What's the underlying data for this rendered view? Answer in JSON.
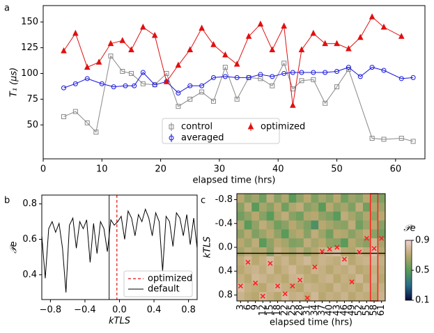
{
  "chart_data": [
    {
      "type": "line",
      "label": "a",
      "xlabel": "elapsed time (hrs)",
      "ylabel": "T₁ (μs)",
      "xlim": [
        0,
        65
      ],
      "ylim": [
        17,
        166
      ],
      "xticks": [
        0,
        10,
        20,
        30,
        40,
        50,
        60
      ],
      "yticks": [
        50,
        75,
        100,
        125,
        150
      ],
      "series": [
        {
          "name": "control",
          "color": "#888888",
          "marker": "s",
          "x": [
            3.5,
            5.5,
            7.5,
            9,
            11.5,
            13.5,
            15,
            17,
            19,
            21,
            23,
            25,
            27,
            29,
            31,
            33,
            35,
            37,
            39,
            41,
            42.5,
            44,
            46,
            48,
            50,
            52,
            56,
            58,
            61,
            63
          ],
          "values": [
            58,
            63,
            52,
            43,
            117,
            102,
            100,
            90,
            89,
            100,
            68,
            75,
            82,
            73,
            106,
            75,
            96,
            95,
            88,
            110,
            85,
            93,
            94,
            71,
            87,
            104,
            37,
            36,
            37,
            34
          ]
        },
        {
          "name": "averaged",
          "color": "#1515e0",
          "marker": "o",
          "x": [
            3.5,
            5.5,
            7.5,
            10,
            12,
            14,
            15.5,
            17,
            19,
            21,
            23,
            25,
            27,
            29,
            31,
            33,
            35,
            37,
            39,
            41,
            42.5,
            44,
            46,
            48,
            50,
            52,
            54,
            56,
            58,
            61,
            63
          ],
          "values": [
            86,
            90,
            95,
            90,
            87,
            88,
            88,
            101,
            89,
            92,
            81,
            88,
            88,
            96,
            97,
            96,
            96,
            99,
            97,
            100,
            101,
            101,
            101,
            101,
            102,
            106,
            97,
            106,
            103,
            95,
            96
          ]
        },
        {
          "name": "optimized",
          "color": "#e01010",
          "marker": "^",
          "x": [
            3.5,
            5.5,
            7.5,
            9.5,
            11.5,
            13.5,
            15,
            17,
            19,
            21,
            23,
            25,
            27,
            29,
            31,
            33,
            35,
            37,
            39,
            41,
            42.5,
            44,
            46,
            48,
            50,
            52,
            54,
            56,
            58,
            61
          ],
          "values": [
            122,
            139,
            106,
            111,
            129,
            132,
            123,
            145,
            137,
            92,
            108,
            123,
            144,
            128,
            118,
            109,
            136,
            148,
            123,
            146,
            69,
            123,
            139,
            129,
            129,
            124,
            135,
            155,
            145,
            136
          ]
        }
      ]
    },
    {
      "type": "line",
      "label": "b",
      "xlabel": "kTLS",
      "ylabel": "𝒫e",
      "xlim": [
        -0.9,
        0.9
      ],
      "ylim": [
        0.26,
        0.85
      ],
      "xticks": [
        {
          "value": -0.8,
          "label": "−0.8"
        },
        {
          "value": -0.4,
          "label": "−0.4"
        },
        {
          "value": 0,
          "label": "0.0"
        },
        0.4,
        0.8
      ],
      "yticks": [
        0.4,
        0.6,
        0.8
      ],
      "series": [
        {
          "color": "#000000",
          "x": [
            -0.9,
            -0.86,
            -0.82,
            -0.78,
            -0.74,
            -0.7,
            -0.66,
            -0.62,
            -0.58,
            -0.54,
            -0.5,
            -0.46,
            -0.42,
            -0.38,
            -0.34,
            -0.3,
            -0.26,
            -0.22,
            -0.18,
            -0.14,
            -0.1,
            -0.06,
            -0.02,
            0.02,
            0.06,
            0.1,
            0.14,
            0.18,
            0.22,
            0.26,
            0.3,
            0.34,
            0.38,
            0.42,
            0.46,
            0.5,
            0.54,
            0.58,
            0.62,
            0.66,
            0.7,
            0.74,
            0.78,
            0.82,
            0.86,
            0.9
          ],
          "values": [
            0.62,
            0.38,
            0.66,
            0.7,
            0.64,
            0.69,
            0.55,
            0.3,
            0.68,
            0.72,
            0.55,
            0.7,
            0.66,
            0.71,
            0.47,
            0.69,
            0.52,
            0.7,
            0.66,
            0.53,
            0.71,
            0.68,
            0.7,
            0.73,
            0.6,
            0.76,
            0.72,
            0.62,
            0.74,
            0.7,
            0.77,
            0.72,
            0.62,
            0.75,
            0.7,
            0.42,
            0.73,
            0.7,
            0.56,
            0.75,
            0.72,
            0.62,
            0.74,
            0.57,
            0.72,
            0.55
          ]
        }
      ],
      "vlines": [
        {
          "name": "optimized",
          "x": -0.03,
          "color": "#e01010",
          "dash": true
        },
        {
          "name": "default",
          "x": -0.12,
          "color": "#333333"
        }
      ]
    },
    {
      "type": "heatmap",
      "label": "c",
      "xlabel": "elapsed time (hrs)",
      "ylabel": "kTLS",
      "colorbar_label": "𝒫e",
      "categories": [
        "3",
        "6",
        "9",
        "12",
        "15",
        "18",
        "22",
        "25",
        "28",
        "31",
        "34",
        "37",
        "40",
        "43",
        "46",
        "49",
        "52",
        "55",
        "58",
        "61"
      ],
      "ylim": [
        -0.9,
        0.9
      ],
      "y_inverted": true,
      "yticks": [
        {
          "value": -0.8,
          "label": "-0.8"
        },
        {
          "value": -0.4,
          "label": "-0.4"
        },
        {
          "value": 0,
          "label": "0.0"
        },
        0.4,
        0.8
      ],
      "clim": [
        0.1,
        0.9
      ],
      "cticks": [
        0.1,
        0.5,
        0.9
      ],
      "colormap": [
        "#0a0a3c",
        "#2a6e8a",
        "#5a9a5a",
        "#b8a870",
        "#f2d0d0"
      ],
      "hline": 0.1,
      "highlight_column": "58",
      "marker_color": "#ff2020",
      "markers": [
        0.65,
        0.25,
        0.6,
        0.82,
        0.27,
        0.65,
        0.78,
        0.65,
        0.55,
        0.85,
        0.33,
        0.07,
        0.03,
        0.0,
        0.2,
        0.58,
        0.08,
        -0.15,
        0.02,
        -0.15
      ],
      "values": [
        [
          0.7,
          0.6,
          0.65,
          0.55,
          0.72,
          0.6,
          0.68,
          0.5,
          0.62,
          0.7,
          0.58,
          0.66,
          0.6,
          0.7,
          0.55,
          0.64,
          0.6,
          0.7,
          0.62,
          0.58
        ],
        [
          0.6,
          0.72,
          0.5,
          0.66,
          0.6,
          0.7,
          0.55,
          0.68,
          0.72,
          0.6,
          0.64,
          0.5,
          0.7,
          0.62,
          0.66,
          0.58,
          0.72,
          0.55,
          0.68,
          0.64
        ],
        [
          0.55,
          0.62,
          0.7,
          0.6,
          0.5,
          0.66,
          0.72,
          0.6,
          0.55,
          0.68,
          0.7,
          0.62,
          0.58,
          0.5,
          0.72,
          0.66,
          0.6,
          0.68,
          0.62,
          0.7
        ],
        [
          0.68,
          0.5,
          0.62,
          0.72,
          0.66,
          0.55,
          0.6,
          0.7,
          0.64,
          0.58,
          0.45,
          0.7,
          0.66,
          0.62,
          0.6,
          0.72,
          0.55,
          0.64,
          0.7,
          0.6
        ],
        [
          0.62,
          0.7,
          0.58,
          0.64,
          0.7,
          0.62,
          0.5,
          0.66,
          0.7,
          0.6,
          0.72,
          0.64,
          0.55,
          0.7,
          0.68,
          0.6,
          0.66,
          0.72,
          0.6,
          0.55
        ],
        [
          0.7,
          0.64,
          0.72,
          0.5,
          0.62,
          0.7,
          0.66,
          0.58,
          0.6,
          0.72,
          0.66,
          0.7,
          0.62,
          0.6,
          0.5,
          0.7,
          0.64,
          0.6,
          0.78,
          0.66
        ],
        [
          0.66,
          0.72,
          0.68,
          0.7,
          0.6,
          0.74,
          0.7,
          0.66,
          0.72,
          0.64,
          0.7,
          0.76,
          0.78,
          0.8,
          0.7,
          0.68,
          0.76,
          0.72,
          0.82,
          0.7
        ],
        [
          0.72,
          0.78,
          0.7,
          0.74,
          0.8,
          0.72,
          0.76,
          0.7,
          0.74,
          0.78,
          0.72,
          0.76,
          0.74,
          0.72,
          0.8,
          0.7,
          0.74,
          0.76,
          0.78,
          0.74
        ],
        [
          0.7,
          0.74,
          0.76,
          0.72,
          0.78,
          0.7,
          0.74,
          0.78,
          0.72,
          0.7,
          0.76,
          0.74,
          0.7,
          0.74,
          0.72,
          0.76,
          0.7,
          0.72,
          0.74,
          0.72
        ],
        [
          0.74,
          0.7,
          0.78,
          0.76,
          0.72,
          0.74,
          0.7,
          0.76,
          0.78,
          0.72,
          0.7,
          0.74,
          0.76,
          0.7,
          0.74,
          0.72,
          0.78,
          0.7,
          0.76,
          0.7
        ],
        [
          0.8,
          0.74,
          0.72,
          0.7,
          0.76,
          0.78,
          0.74,
          0.72,
          0.7,
          0.76,
          0.74,
          0.72,
          0.7,
          0.76,
          0.72,
          0.74,
          0.7,
          0.76,
          0.72,
          0.74
        ],
        [
          0.76,
          0.72,
          0.7,
          0.78,
          0.74,
          0.7,
          0.8,
          0.74,
          0.76,
          0.72,
          0.78,
          0.7,
          0.74,
          0.72,
          0.76,
          0.7,
          0.74,
          0.72,
          0.7,
          0.76
        ]
      ]
    }
  ]
}
